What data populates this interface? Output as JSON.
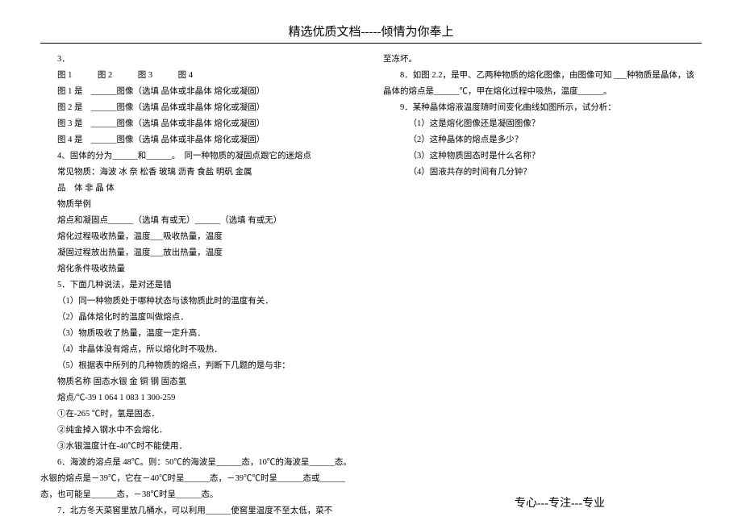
{
  "header": "精选优质文档-----倾情为你奉上",
  "footer": "专心---专注---专业",
  "left": [
    "3．",
    "图 1　　　图 2　　　图 3　　　图 4",
    "图 1 是　______图像（选填 品体或非晶体 熔化或凝固）",
    "图 2 是　______图像（选填 品体或非晶体 熔化或凝固）",
    "图 3 是　______图像（选填 品体或非晶体 熔化或凝固）",
    "图 4 是　______图像（选填 品体或非晶体 熔化或凝固）",
    "4、固体的分为______和______。　同一种物质的凝固点跟它的迷熔点",
    "常见物质：海波 冰 奈 松香 玻璃 沥青 食盐 明矾 金属",
    "品　体 非 晶 体",
    "物质举例",
    "熔点和凝固点______（选填 有或无）______（选填 有或无）",
    "熔化过程吸收热量，温度___吸收热量，温度",
    "凝固过程放出热量，温度___放出热量，温度",
    "熔化条件吸收热量",
    "5．下面几种说法，是对还是错",
    "（1）同一种物质处于哪种状态与该物质此时的温度有关．",
    "（2）晶体熔化时的温度叫做熔点．",
    "（3）物质吸收了热量，温度一定升高．",
    "（4）非晶体没有熔点，所以熔化时不吸热．",
    "（5）根据表中所列的几种物质的熔点，判断下几题的是与非：",
    "物质名称 固态水银 金 铜 钢 固态氢",
    "熔点/℃-39 1 064 1 083 1 300-259",
    "①在-265 ℃时，氢是固态．",
    "②纯金掉入钢水中不会熔化．",
    "③水银温度计在-40℃时不能使用．",
    "6．海波的溶点是 48℃。则：50℃的海波呈______态，10℃的海波呈______态。水银的熔点是－39℃，它在－40℃时呈______态，－39℃℃时呈______态或______态，也可能呈______态，－38℃时呈______态。",
    "7．北方冬天菜窖里放几桶水，可以利用______使窖里温度不至太低，菜不"
  ],
  "right": [
    "至冻坏。",
    "8．如图 2.2，是甲、乙两种物质的熔化图像，由图像可知 ___种物质是晶体，该晶体的熔点是______℃，甲在熔化过程中吸热，温度______。",
    "9．某种晶体熔液温度随时间变化曲线如图所示，试分析：",
    "（1）这是熔化图像还是凝固图像？",
    "（2）这种晶体的熔点是多少？",
    "（3）这种物质固态时是什么名称？",
    "（4）固液共存的时间有几分钟？"
  ]
}
